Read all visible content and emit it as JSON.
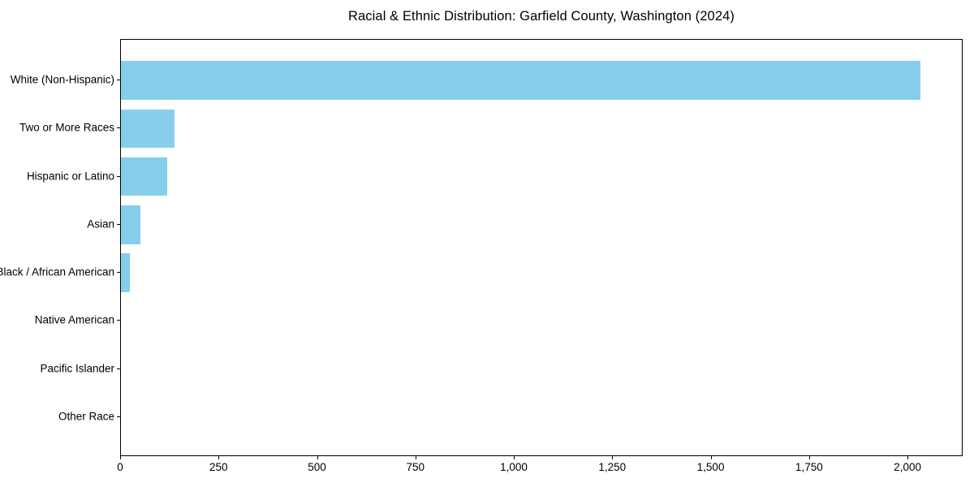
{
  "figure": {
    "background": "#ffffff"
  },
  "chart_data": {
    "type": "bar",
    "orientation": "horizontal",
    "title": "Racial & Ethnic Distribution: Garfield County, Washington (2024)",
    "categories": [
      "White (Non-Hispanic)",
      "Two or More Races",
      "Hispanic or Latino",
      "Asian",
      "Black / African American",
      "Native American",
      "Pacific Islander",
      "Other Race"
    ],
    "values": [
      2030,
      136,
      117,
      49,
      23,
      0,
      0,
      0
    ],
    "xlabel": "",
    "ylabel": "",
    "xlim": [
      0,
      2140
    ],
    "xticks": [
      0,
      250,
      500,
      750,
      1000,
      1250,
      1500,
      1750,
      2000
    ],
    "xtick_labels": [
      "0",
      "250",
      "500",
      "750",
      "1,000",
      "1,250",
      "1,500",
      "1,750",
      "2,000"
    ],
    "bar_color": "#87CEEB",
    "axis_color": "#000000",
    "text_color": "#000000",
    "grid": false,
    "legend": null
  }
}
